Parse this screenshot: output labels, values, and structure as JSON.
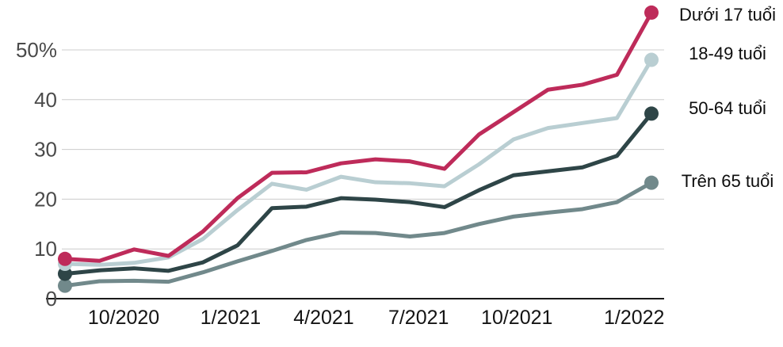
{
  "chart_data": {
    "type": "line",
    "grid": true,
    "legend_position": "right",
    "ylim": [
      0,
      58.5
    ],
    "y_ticks": [
      {
        "value": 0,
        "label": "0"
      },
      {
        "value": 10,
        "label": "10"
      },
      {
        "value": 20,
        "label": "20"
      },
      {
        "value": 30,
        "label": "30"
      },
      {
        "value": 40,
        "label": "40"
      },
      {
        "value": 50,
        "label": "50%"
      }
    ],
    "x_ticks": [
      {
        "x": 1.7,
        "label": "10/2020"
      },
      {
        "x": 4.8,
        "label": "1/2021"
      },
      {
        "x": 7.5,
        "label": "4/2021"
      },
      {
        "x": 10.25,
        "label": "7/2021"
      },
      {
        "x": 13.1,
        "label": "10/2021"
      },
      {
        "x": 16.5,
        "label": "1/2022"
      }
    ],
    "series": [
      {
        "id": "under-17",
        "name": "Dưới 17 tuổi",
        "color": "#be2b5a",
        "values": [
          8.0,
          7.6,
          9.9,
          8.6,
          13.5,
          20.2,
          25.3,
          25.4,
          27.2,
          28.0,
          27.6,
          26.1,
          33.0,
          37.5,
          42.0,
          43.0,
          45.0,
          57.5
        ]
      },
      {
        "id": "18-49",
        "name": "18-49 tuổi",
        "color": "#b9ced2",
        "values": [
          7.0,
          6.8,
          7.2,
          8.3,
          12.0,
          17.8,
          23.1,
          21.9,
          24.5,
          23.4,
          23.2,
          22.6,
          27.0,
          32.0,
          34.3,
          35.3,
          36.3,
          48.0
        ]
      },
      {
        "id": "50-64",
        "name": "50-64 tuổi",
        "color": "#2e4547",
        "values": [
          5.0,
          5.7,
          6.1,
          5.6,
          7.3,
          10.7,
          18.2,
          18.5,
          20.2,
          19.9,
          19.4,
          18.4,
          21.8,
          24.8,
          25.6,
          26.4,
          28.7,
          37.2
        ]
      },
      {
        "id": "over-65",
        "name": "Trên 65 tuổi",
        "color": "#71898b",
        "values": [
          2.6,
          3.5,
          3.6,
          3.4,
          5.3,
          7.5,
          9.6,
          11.8,
          13.3,
          13.2,
          12.5,
          13.2,
          15.0,
          16.5,
          17.3,
          18.0,
          19.4,
          23.3
        ]
      }
    ],
    "colors": {
      "gridline": "#cccccc",
      "baseline": "#1a1a1a",
      "y_label": "#4a4a4a",
      "x_label": "#141414",
      "background": "#ffffff"
    }
  }
}
